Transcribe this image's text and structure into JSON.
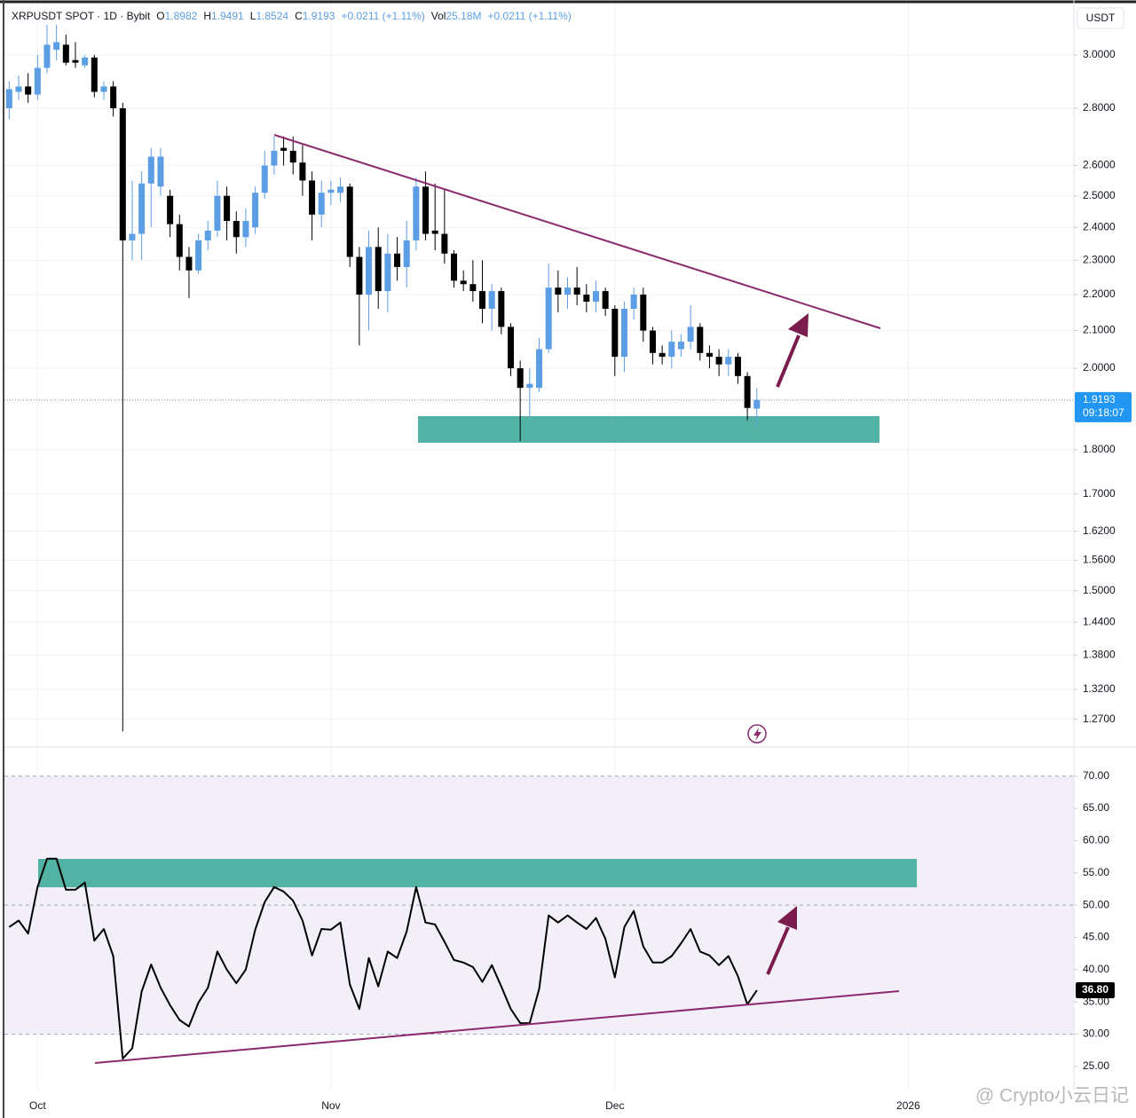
{
  "chart_data": [
    {
      "type": "candlestick",
      "header": {
        "symbol": "XRPUSDT SPOT · 1D · Bybit",
        "fields": [
          {
            "key": "O",
            "value": "1.8982"
          },
          {
            "key": "H",
            "value": "1.9491"
          },
          {
            "key": "L",
            "value": "1.8524"
          },
          {
            "key": "C",
            "value": "1.9193"
          },
          {
            "value": "+0.0211 (+1.11%)"
          },
          {
            "key": "Vol",
            "value": "25.18M"
          },
          {
            "value": "+0.0211 (+1.11%)"
          }
        ]
      },
      "currency": "USDT",
      "x": [
        -3,
        -2,
        -1,
        0,
        1,
        2,
        3,
        4,
        5,
        6,
        7,
        8,
        9,
        10,
        11,
        12,
        13,
        14,
        15,
        16,
        17,
        18,
        19,
        20,
        21,
        22,
        23,
        24,
        25,
        26,
        27,
        28,
        29,
        30,
        31,
        32,
        33,
        34,
        35,
        36,
        37,
        38,
        39,
        40,
        41,
        42,
        43,
        44,
        45,
        46,
        47,
        48,
        49,
        50,
        51,
        52,
        53,
        54,
        55,
        56,
        57,
        58,
        59,
        60,
        61,
        62,
        63,
        64,
        65,
        66,
        67,
        68,
        69,
        70,
        71,
        72,
        73,
        74,
        75,
        76
      ],
      "open": [
        2.8,
        2.86,
        2.88,
        2.85,
        2.95,
        3.02,
        3.04,
        2.98,
        2.96,
        2.99,
        2.86,
        2.88,
        2.8,
        2.36,
        2.38,
        2.54,
        2.53,
        2.5,
        2.41,
        2.31,
        2.27,
        2.36,
        2.39,
        2.5,
        2.42,
        2.37,
        2.4,
        2.51,
        2.6,
        2.66,
        2.65,
        2.61,
        2.55,
        2.44,
        2.51,
        2.51,
        2.53,
        2.31,
        2.2,
        2.34,
        2.21,
        2.32,
        2.28,
        2.36,
        2.53,
        2.39,
        2.38,
        2.32,
        2.24,
        2.23,
        2.21,
        2.16,
        2.21,
        2.11,
        2.0,
        1.95,
        1.95,
        2.05,
        2.22,
        2.2,
        2.22,
        2.2,
        2.18,
        2.21,
        2.16,
        2.03,
        2.16,
        2.2,
        2.1,
        2.04,
        2.03,
        2.05,
        2.07,
        2.11,
        2.04,
        2.03,
        2.01,
        2.03,
        1.98,
        1.8982
      ],
      "high": [
        2.9,
        2.92,
        2.93,
        3.0,
        3.12,
        3.12,
        3.08,
        3.05,
        3.0,
        3.0,
        2.9,
        2.9,
        2.82,
        2.55,
        2.58,
        2.66,
        2.66,
        2.52,
        2.44,
        2.34,
        2.38,
        2.42,
        2.55,
        2.53,
        2.45,
        2.46,
        2.53,
        2.65,
        2.7,
        2.7,
        2.7,
        2.67,
        2.58,
        2.55,
        2.55,
        2.56,
        2.54,
        2.34,
        2.39,
        2.4,
        2.38,
        2.37,
        2.42,
        2.56,
        2.58,
        2.54,
        2.52,
        2.33,
        2.27,
        2.3,
        2.3,
        2.23,
        2.22,
        2.12,
        2.02,
        2.0,
        2.08,
        2.29,
        2.27,
        2.25,
        2.28,
        2.23,
        2.24,
        2.22,
        2.17,
        2.18,
        2.22,
        2.22,
        2.11,
        2.06,
        2.1,
        2.09,
        2.17,
        2.12,
        2.06,
        2.05,
        2.05,
        2.04,
        1.99,
        1.9491
      ],
      "low": [
        2.76,
        2.83,
        2.82,
        2.83,
        2.93,
        2.98,
        2.96,
        2.95,
        2.95,
        2.84,
        2.83,
        2.77,
        1.25,
        2.3,
        2.3,
        2.4,
        2.5,
        2.37,
        2.27,
        2.19,
        2.26,
        2.33,
        2.37,
        2.36,
        2.32,
        2.34,
        2.38,
        2.49,
        2.57,
        2.6,
        2.57,
        2.5,
        2.36,
        2.4,
        2.47,
        2.48,
        2.28,
        2.06,
        2.1,
        2.16,
        2.15,
        2.24,
        2.22,
        2.33,
        2.36,
        2.33,
        2.29,
        2.22,
        2.21,
        2.18,
        2.12,
        2.1,
        2.09,
        1.98,
        1.82,
        1.88,
        1.94,
        2.04,
        2.15,
        2.16,
        2.17,
        2.15,
        2.15,
        2.14,
        1.98,
        1.99,
        2.13,
        2.07,
        2.01,
        2.01,
        2.0,
        2.03,
        2.05,
        2.02,
        2.0,
        1.98,
        1.98,
        1.96,
        1.87,
        1.8524
      ],
      "close": [
        2.87,
        2.88,
        2.85,
        2.95,
        3.04,
        3.05,
        2.97,
        2.97,
        2.99,
        2.86,
        2.88,
        2.8,
        2.36,
        2.38,
        2.54,
        2.63,
        2.63,
        2.41,
        2.31,
        2.27,
        2.36,
        2.39,
        2.5,
        2.42,
        2.37,
        2.42,
        2.51,
        2.6,
        2.65,
        2.65,
        2.61,
        2.55,
        2.44,
        2.51,
        2.52,
        2.53,
        2.31,
        2.2,
        2.34,
        2.21,
        2.32,
        2.28,
        2.36,
        2.53,
        2.38,
        2.38,
        2.32,
        2.24,
        2.23,
        2.21,
        2.16,
        2.21,
        2.11,
        2.0,
        1.95,
        1.96,
        2.05,
        2.22,
        2.2,
        2.22,
        2.2,
        2.18,
        2.21,
        2.16,
        2.03,
        2.16,
        2.2,
        2.1,
        2.04,
        2.03,
        2.07,
        2.07,
        2.11,
        2.04,
        2.03,
        2.01,
        2.03,
        1.98,
        1.9,
        1.9193
      ],
      "up_color": "#5b9ee6",
      "down_color": "#000000",
      "log_scale": true,
      "xlim": [
        -3.5,
        109.5
      ],
      "xticks": [
        {
          "value": 0,
          "label": "Oct"
        },
        {
          "value": 31,
          "label": "Nov"
        },
        {
          "value": 61,
          "label": "Dec"
        },
        {
          "value": 92,
          "label": "2026"
        }
      ],
      "ylim": [
        1.225,
        3.221
      ],
      "yticks": [
        {
          "value": 3.0,
          "label": "3.0000"
        },
        {
          "value": 2.8,
          "label": "2.8000"
        },
        {
          "value": 2.6,
          "label": "2.6000"
        },
        {
          "value": 2.5,
          "label": "2.5000"
        },
        {
          "value": 2.4,
          "label": "2.4000"
        },
        {
          "value": 2.3,
          "label": "2.3000"
        },
        {
          "value": 2.2,
          "label": "2.2000"
        },
        {
          "value": 2.1,
          "label": "2.1000"
        },
        {
          "value": 2.0,
          "label": "2.0000"
        },
        {
          "value": 1.8,
          "label": "1.8000"
        },
        {
          "value": 1.7,
          "label": "1.7000"
        },
        {
          "value": 1.62,
          "label": "1.6200"
        },
        {
          "value": 1.56,
          "label": "1.5600"
        },
        {
          "value": 1.5,
          "label": "1.5000"
        },
        {
          "value": 1.44,
          "label": "1.4400"
        },
        {
          "value": 1.38,
          "label": "1.3800"
        },
        {
          "value": 1.32,
          "label": "1.3200"
        },
        {
          "value": 1.27,
          "label": "1.2700"
        }
      ],
      "grid": true,
      "last_price_label": "1.9193",
      "countdown": "09:18:07",
      "tag_color": "#2196f3"
    },
    {
      "type": "line",
      "x": [
        -3,
        -2,
        -1,
        0,
        1,
        2,
        3,
        4,
        5,
        6,
        7,
        8,
        9,
        10,
        11,
        12,
        13,
        14,
        15,
        16,
        17,
        18,
        19,
        20,
        21,
        22,
        23,
        24,
        25,
        26,
        27,
        28,
        29,
        30,
        31,
        32,
        33,
        34,
        35,
        36,
        37,
        38,
        39,
        40,
        41,
        42,
        43,
        44,
        45,
        46,
        47,
        48,
        49,
        50,
        51,
        52,
        53,
        54,
        55,
        56,
        57,
        58,
        59,
        60,
        61,
        62,
        63,
        64,
        65,
        66,
        67,
        68,
        69,
        70,
        71,
        72,
        73,
        74,
        75,
        76
      ],
      "values": [
        46.6,
        47.6,
        45.6,
        52.8,
        57.2,
        57.2,
        52.4,
        52.4,
        53.5,
        44.5,
        46.3,
        42.1,
        26.2,
        27.8,
        36.6,
        40.8,
        37.2,
        34.5,
        32.2,
        31.2,
        34.9,
        37.2,
        42.8,
        40.0,
        37.9,
        40.0,
        46.2,
        50.5,
        52.8,
        52.1,
        50.7,
        47.6,
        42.2,
        46.3,
        46.2,
        47.3,
        37.7,
        33.9,
        41.8,
        37.4,
        42.8,
        41.8,
        45.9,
        52.8,
        47.3,
        47.0,
        44.3,
        41.5,
        41.1,
        40.4,
        38.1,
        40.7,
        37.4,
        33.9,
        31.7,
        31.7,
        37.0,
        48.4,
        47.3,
        48.4,
        47.3,
        46.3,
        48.0,
        44.8,
        38.8,
        46.6,
        49.1,
        43.6,
        41.1,
        41.1,
        42.1,
        44.1,
        46.3,
        42.8,
        42.2,
        40.7,
        42.1,
        39.0,
        34.6,
        36.8
      ],
      "color": "#000000",
      "xlim": [
        -3.5,
        109.5
      ],
      "ylim": [
        21.4,
        74.5
      ],
      "yticks": [
        {
          "value": 70,
          "label": "70.00"
        },
        {
          "value": 65,
          "label": "65.00"
        },
        {
          "value": 60,
          "label": "60.00"
        },
        {
          "value": 55,
          "label": "55.00"
        },
        {
          "value": 50,
          "label": "50.00"
        },
        {
          "value": 45,
          "label": "45.00"
        },
        {
          "value": 40,
          "label": "40.00"
        },
        {
          "value": 35,
          "label": "35.00"
        },
        {
          "value": 30,
          "label": "30.00"
        },
        {
          "value": 25,
          "label": "25.00"
        }
      ],
      "band": [
        30,
        70
      ],
      "middle_line": 50,
      "last_value_label": "36.80"
    }
  ],
  "watermark": "@ Crypto小云日记"
}
